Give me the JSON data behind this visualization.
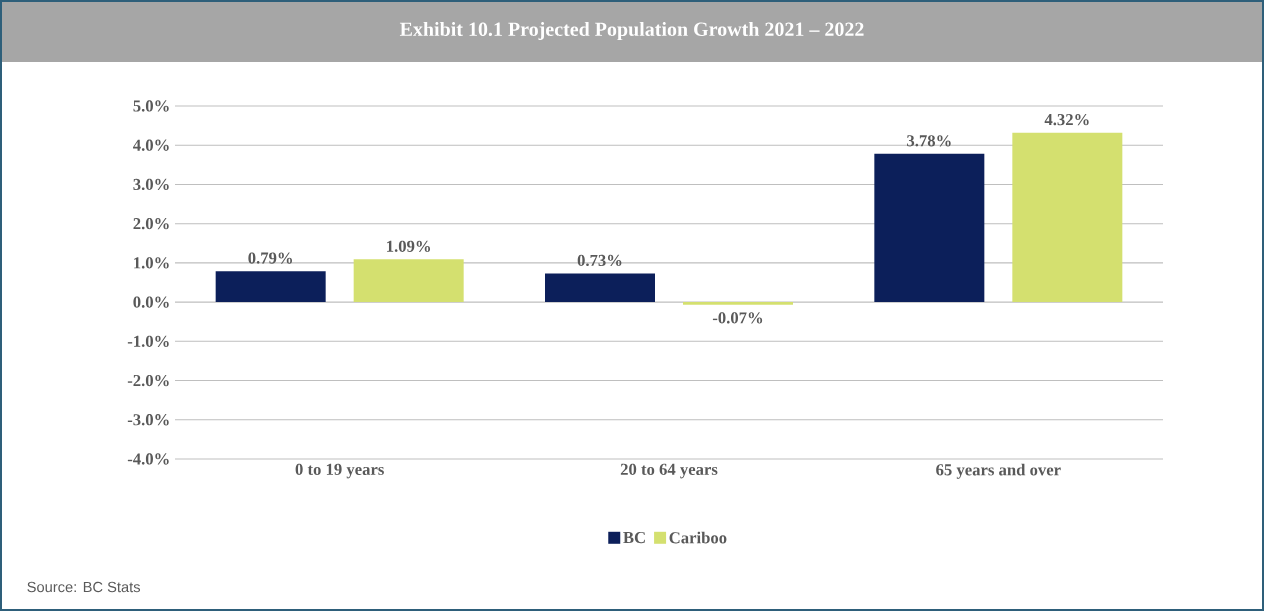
{
  "chart_data": {
    "type": "bar",
    "title": "Exhibit 10.1 Projected Population Growth 2021 – 2022",
    "categories": [
      "0 to 19 years",
      "20 to 64 years",
      "65 years and over"
    ],
    "series": [
      {
        "name": "BC",
        "color": "#0c1f5a",
        "values": [
          0.79,
          0.73,
          3.78
        ],
        "value_labels": [
          "0.79%",
          "0.73%",
          "3.78%"
        ]
      },
      {
        "name": "Cariboo",
        "color": "#d4e06f",
        "values": [
          1.09,
          -0.07,
          4.32
        ],
        "value_labels": [
          "1.09%",
          "-0.07%",
          "4.32%"
        ]
      }
    ],
    "ylim": [
      -4,
      5
    ],
    "yticks": [
      {
        "value": -4,
        "label": "-4.0%"
      },
      {
        "value": -3,
        "label": "-3.0%"
      },
      {
        "value": -2,
        "label": "-2.0%"
      },
      {
        "value": -1,
        "label": "-1.0%"
      },
      {
        "value": 0,
        "label": "0.0%"
      },
      {
        "value": 1,
        "label": "1.0%"
      },
      {
        "value": 2,
        "label": "2.0%"
      },
      {
        "value": 3,
        "label": "3.0%"
      },
      {
        "value": 4,
        "label": "4.0%"
      },
      {
        "value": 5,
        "label": "5.0%"
      }
    ],
    "grid": "y",
    "legend": "bottom",
    "annotations": [
      "Source: BC Stats"
    ]
  }
}
